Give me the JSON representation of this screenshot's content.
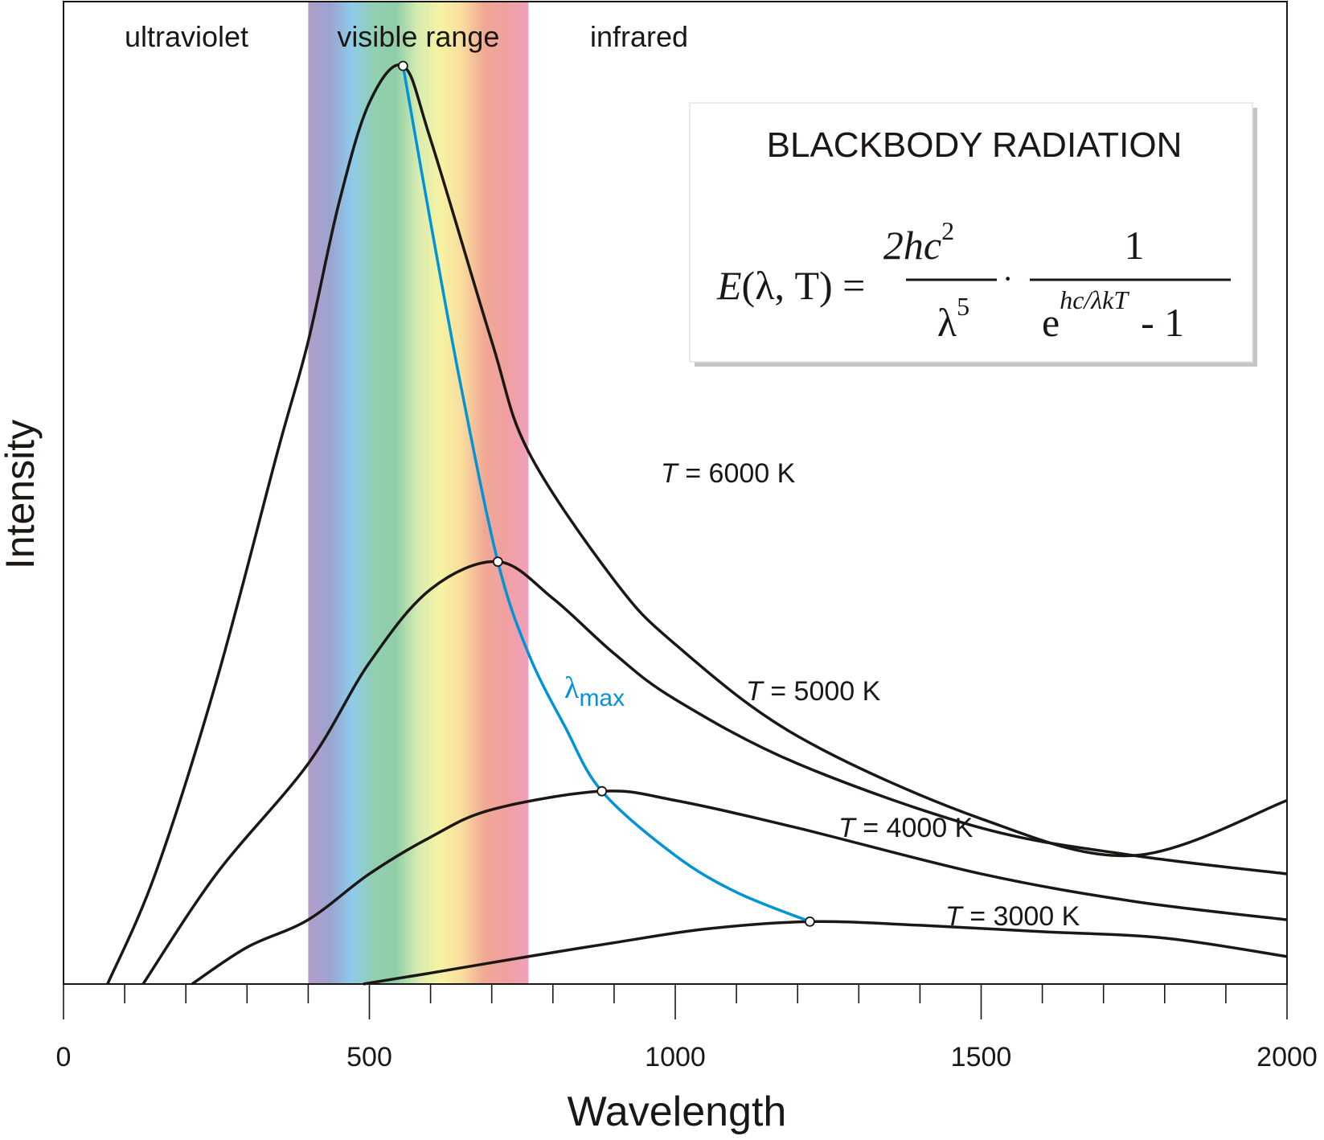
{
  "chart_data": {
    "type": "line",
    "title": "BLACKBODY RADIATION",
    "formula": {
      "lhs": "E(λ, T) =",
      "num1": "2hc",
      "num1_sup": "2",
      "den1": "λ",
      "den1_sup": "5",
      "dot": "·",
      "num2": "1",
      "den2_base": "e",
      "den2_sup": "hc/λkT",
      "den2_tail": "- 1"
    },
    "xlabel": "Wavelength",
    "ylabel": "Intensity",
    "xlim": [
      0,
      2000
    ],
    "ylim": [
      0,
      1
    ],
    "x_ticks_major": [
      0,
      500,
      1000,
      1500,
      2000
    ],
    "x_tick_labels": [
      "0",
      "500",
      "1000",
      "1500",
      "2000"
    ],
    "x_minor_step": 100,
    "y_ticks": [],
    "grid": false,
    "regions": [
      {
        "label": "ultraviolet",
        "from": 0,
        "to": 400
      },
      {
        "label": "visible range",
        "from": 400,
        "to": 760
      },
      {
        "label": "infrared",
        "from": 760,
        "to": 2000
      }
    ],
    "visible_band": {
      "from": 400,
      "to": 760,
      "colors": [
        "#b49cc9",
        "#9aa4d0",
        "#8ecbea",
        "#91cfb0",
        "#90cea8",
        "#d8ecb0",
        "#f6f3a4",
        "#f9dc9c",
        "#f0a894",
        "#f0a0a0",
        "#f0a0bc"
      ]
    },
    "series": [
      {
        "name": "T = 6000 K",
        "label_T": "T",
        "label_rest": " = 6000 K",
        "temperature": 6000,
        "peak": {
          "x": 555,
          "y": 1.0
        },
        "points": [
          [
            72,
            0
          ],
          [
            150,
            0.12
          ],
          [
            250,
            0.33
          ],
          [
            350,
            0.58
          ],
          [
            400,
            0.7
          ],
          [
            450,
            0.85
          ],
          [
            500,
            0.96
          ],
          [
            555,
            1.0
          ],
          [
            600,
            0.92
          ],
          [
            700,
            0.7
          ],
          [
            760,
            0.58
          ],
          [
            900,
            0.44
          ],
          [
            1000,
            0.37
          ],
          [
            1200,
            0.27
          ],
          [
            1500,
            0.18
          ],
          [
            1750,
            0.14
          ],
          [
            2000,
            0.2
          ]
        ]
      },
      {
        "name": "T = 5000 K",
        "label_T": "T",
        "label_rest": " = 5000 K",
        "temperature": 5000,
        "peak": {
          "x": 710,
          "y": 0.46
        },
        "points": [
          [
            130,
            0
          ],
          [
            250,
            0.12
          ],
          [
            400,
            0.24
          ],
          [
            500,
            0.35
          ],
          [
            600,
            0.43
          ],
          [
            710,
            0.46
          ],
          [
            800,
            0.42
          ],
          [
            900,
            0.36
          ],
          [
            1000,
            0.31
          ],
          [
            1200,
            0.24
          ],
          [
            1500,
            0.17
          ],
          [
            1750,
            0.14
          ],
          [
            2000,
            0.12
          ]
        ]
      },
      {
        "name": "T = 4000 K",
        "label_T": "T",
        "label_rest": " = 4000 K",
        "temperature": 4000,
        "peak": {
          "x": 880,
          "y": 0.21
        },
        "points": [
          [
            210,
            0
          ],
          [
            300,
            0.04
          ],
          [
            400,
            0.07
          ],
          [
            500,
            0.12
          ],
          [
            600,
            0.16
          ],
          [
            700,
            0.19
          ],
          [
            880,
            0.21
          ],
          [
            1000,
            0.2
          ],
          [
            1200,
            0.17
          ],
          [
            1500,
            0.12
          ],
          [
            1750,
            0.09
          ],
          [
            2000,
            0.07
          ]
        ]
      },
      {
        "name": "T = 3000 K",
        "label_T": "T",
        "label_rest": " = 3000 K",
        "temperature": 3000,
        "peak": {
          "x": 1220,
          "y": 0.068
        },
        "points": [
          [
            490,
            0
          ],
          [
            600,
            0.012
          ],
          [
            760,
            0.03
          ],
          [
            900,
            0.045
          ],
          [
            1050,
            0.06
          ],
          [
            1220,
            0.068
          ],
          [
            1400,
            0.064
          ],
          [
            1600,
            0.057
          ],
          [
            1800,
            0.05
          ],
          [
            2000,
            0.03
          ]
        ]
      }
    ],
    "lambda_max_curve": {
      "label": "λ",
      "label_sub": "max",
      "color": "#0093d8",
      "points": [
        [
          555,
          1.0
        ],
        [
          600,
          0.83
        ],
        [
          650,
          0.65
        ],
        [
          710,
          0.46
        ],
        [
          760,
          0.36
        ],
        [
          820,
          0.28
        ],
        [
          880,
          0.21
        ],
        [
          1000,
          0.14
        ],
        [
          1100,
          0.1
        ],
        [
          1220,
          0.068
        ]
      ]
    },
    "annotations": [
      {
        "text": "ultraviolet"
      },
      {
        "text": "visible range"
      },
      {
        "text": "infrared"
      }
    ]
  }
}
